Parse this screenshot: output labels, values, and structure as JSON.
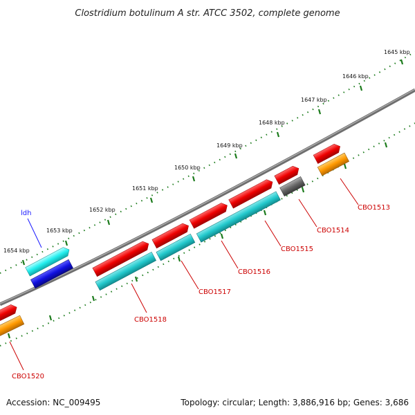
{
  "title": "Clostridium botulinum A str. ATCC 3502, complete genome",
  "footer": {
    "accession": "Accession: NC_009495",
    "topology": "Topology: circular; Length: 3,886,916 bp; Genes: 3,686"
  },
  "ticks": [
    "1645 kbp",
    "1646 kbp",
    "1647 kbp",
    "1648 kbp",
    "1649 kbp",
    "1650 kbp",
    "1651 kbp",
    "1652 kbp",
    "1653 kbp",
    "1654 kbp"
  ],
  "genes": {
    "ldh": "ldh",
    "cbo1513": "CBO1513",
    "cbo1514": "CBO1514",
    "cbo1515": "CBO1515",
    "cbo1516": "CBO1516",
    "cbo1517": "CBO1517",
    "cbo1518": "CBO1518",
    "cbo1520": "CBO1520"
  },
  "colors": {
    "gene_red": "#ee0000",
    "cds_cyan": "#22c8cc",
    "cds_light_cyan": "#22eeee",
    "cds_blue": "#1010e0",
    "cds_orange": "#ff9900",
    "cds_gray": "#666666",
    "backbone": "#777777",
    "tick_green": "#1a7a1a",
    "label_red": "#cc0000",
    "label_blue": "#1a1aff"
  }
}
